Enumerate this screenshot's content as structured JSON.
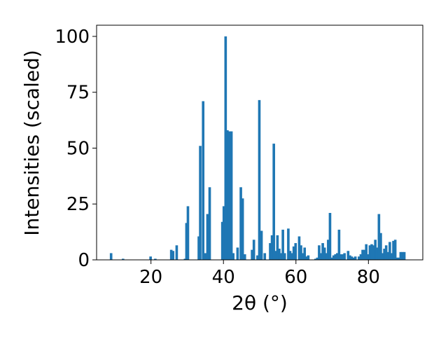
{
  "chart_data": {
    "type": "bar",
    "title": "",
    "xlabel": "2θ (°)",
    "ylabel": "Intensities (scaled)",
    "xlim": [
      5,
      95
    ],
    "ylim": [
      0,
      105
    ],
    "x_ticks": [
      20,
      40,
      60,
      80
    ],
    "x_tick_labels": [
      "20",
      "40",
      "60",
      "80"
    ],
    "y_ticks": [
      0,
      25,
      50,
      75,
      100
    ],
    "y_tick_labels": [
      "0",
      "25",
      "50",
      "75",
      "100"
    ],
    "grid": false,
    "legend": "none",
    "bar_color": "#1f77b4",
    "bar_width": 0.7,
    "x": [
      9.0,
      12.3,
      19.9,
      21.2,
      25.6,
      26.1,
      27.1,
      29.4,
      29.8,
      30.2,
      33.2,
      33.6,
      34.4,
      35.0,
      35.6,
      36.2,
      39.7,
      40.1,
      40.6,
      41.1,
      41.6,
      42.2,
      42.7,
      43.9,
      44.8,
      45.3,
      45.9,
      47.9,
      48.4,
      49.4,
      49.9,
      50.5,
      51.4,
      52.9,
      53.4,
      53.9,
      54.4,
      54.9,
      55.4,
      55.9,
      56.4,
      56.9,
      57.9,
      58.4,
      58.9,
      59.4,
      59.9,
      60.9,
      61.4,
      61.9,
      62.4,
      62.9,
      63.4,
      65.4,
      65.9,
      66.4,
      66.9,
      67.4,
      67.9,
      68.4,
      68.9,
      69.4,
      69.9,
      70.4,
      70.9,
      71.4,
      71.9,
      72.4,
      72.9,
      73.4,
      74.4,
      74.9,
      75.4,
      75.9,
      76.4,
      77.4,
      77.9,
      78.4,
      78.9,
      79.4,
      79.9,
      80.4,
      80.9,
      81.4,
      81.9,
      82.4,
      82.9,
      83.4,
      83.9,
      84.4,
      84.9,
      85.4,
      85.9,
      86.4,
      86.9,
      87.4,
      87.9,
      88.4,
      88.9,
      89.4,
      89.9
    ],
    "values": [
      3,
      0.5,
      1.5,
      0.5,
      4.5,
      4,
      6.5,
      0.5,
      16.5,
      24,
      10.5,
      51,
      71,
      3,
      20.5,
      32.5,
      17,
      24,
      100,
      58,
      57.5,
      57.5,
      3,
      5.5,
      32.5,
      27.5,
      2.5,
      4.5,
      9,
      2,
      71.5,
      13,
      3,
      7.5,
      11,
      52,
      4,
      11,
      5,
      3,
      13.5,
      3,
      14,
      4,
      3,
      6,
      7.5,
      10.5,
      6.5,
      3,
      5.5,
      1.5,
      2,
      0.5,
      1,
      6.5,
      3,
      7.5,
      5.5,
      3,
      9,
      21,
      1,
      2,
      2.5,
      3,
      13.5,
      2.5,
      2.5,
      3,
      4,
      2,
      1.5,
      1,
      1.5,
      1.5,
      2.5,
      4.5,
      4.5,
      7,
      2.5,
      6.5,
      7,
      6.5,
      9,
      5.5,
      20.5,
      12,
      3,
      5,
      6.5,
      3.5,
      8,
      3,
      8.5,
      9,
      1,
      1,
      3.5,
      3.5,
      3.5
    ]
  }
}
